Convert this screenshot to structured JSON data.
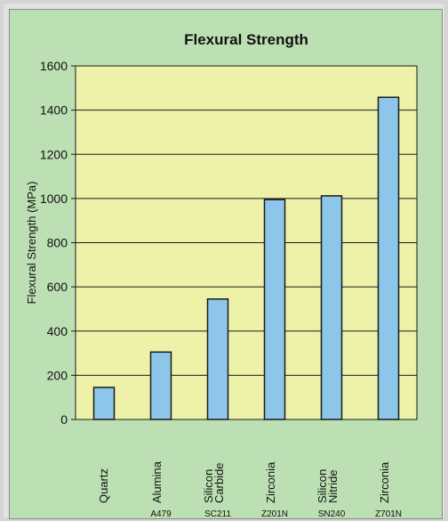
{
  "chart_data": {
    "type": "bar",
    "title": "Flexural Strength",
    "xlabel": "",
    "ylabel": "Flexural Strength (MPa)",
    "ylim": [
      0,
      1600
    ],
    "yticks": [
      0,
      200,
      400,
      600,
      800,
      1000,
      1200,
      1400,
      1600
    ],
    "grid": true,
    "categories": [
      {
        "lines": [
          "Quartz"
        ],
        "code": ""
      },
      {
        "lines": [
          "Alumina"
        ],
        "code": "A479"
      },
      {
        "lines": [
          "Silicon",
          "Carbide"
        ],
        "code": "SC211"
      },
      {
        "lines": [
          "Zirconia"
        ],
        "code": "Z201N"
      },
      {
        "lines": [
          "Silicon",
          "Nitride"
        ],
        "code": "SN240"
      },
      {
        "lines": [
          "Zirconia"
        ],
        "code": "Z701N"
      }
    ],
    "values": [
      145,
      305,
      545,
      995,
      1012,
      1458
    ]
  },
  "colors": {
    "plot_background": "#eef2a9",
    "bar_fill": "#8ec6ea",
    "bar_stroke": "#1a1a1a",
    "grid": "#1a1a1a"
  }
}
